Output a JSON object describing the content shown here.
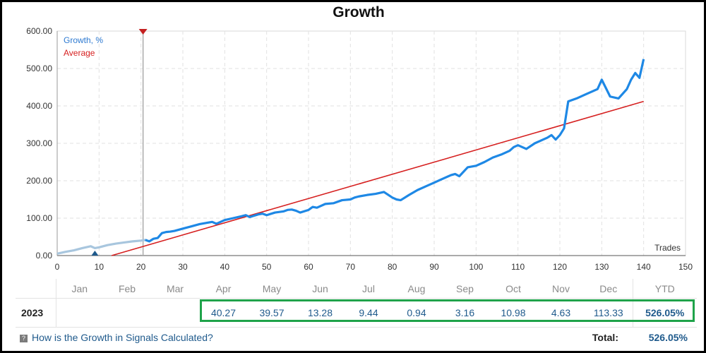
{
  "title": "Growth",
  "legend": {
    "growth": "Growth, %",
    "average": "Average"
  },
  "colors": {
    "growth": "#1e88e5",
    "growth_early": "#a8c6de",
    "average": "#d62020",
    "highlight": "#1fa34a"
  },
  "chart_data": {
    "type": "line",
    "title": "Growth",
    "xlabel": "Trades",
    "ylabel": "",
    "xlim": [
      0,
      150
    ],
    "ylim": [
      0,
      600
    ],
    "x_ticks": [
      0,
      10,
      20,
      30,
      40,
      50,
      60,
      70,
      80,
      90,
      100,
      110,
      120,
      130,
      140,
      150
    ],
    "y_ticks": [
      "0.00",
      "100.00",
      "200.00",
      "300.00",
      "400.00",
      "500.00",
      "600.00"
    ],
    "grid": true,
    "legend_position": "top-left",
    "series": [
      {
        "name": "Growth, %",
        "x": [
          0,
          2,
          4,
          6,
          8,
          9,
          10,
          12,
          14,
          16,
          18,
          20,
          21,
          22,
          23,
          24,
          25,
          26,
          27,
          28,
          30,
          32,
          34,
          36,
          37,
          38,
          40,
          42,
          44,
          45,
          46,
          48,
          49,
          50,
          52,
          54,
          55,
          56,
          57,
          58,
          60,
          61,
          62,
          64,
          66,
          68,
          70,
          71,
          72,
          74,
          76,
          78,
          80,
          81,
          82,
          84,
          86,
          88,
          90,
          92,
          94,
          95,
          96,
          98,
          100,
          102,
          104,
          106,
          108,
          109,
          110,
          112,
          114,
          116,
          117,
          118,
          119,
          120,
          121,
          122,
          124,
          126,
          127,
          128,
          129,
          130,
          132,
          134,
          136,
          137,
          138,
          139,
          140
        ],
        "y": [
          5,
          10,
          14,
          20,
          25,
          20,
          22,
          28,
          32,
          35,
          38,
          40,
          42,
          38,
          45,
          47,
          60,
          63,
          64,
          66,
          72,
          78,
          84,
          88,
          90,
          85,
          95,
          100,
          105,
          108,
          103,
          110,
          112,
          108,
          115,
          118,
          122,
          123,
          120,
          115,
          122,
          130,
          128,
          138,
          140,
          148,
          150,
          155,
          158,
          162,
          165,
          170,
          155,
          150,
          148,
          162,
          175,
          185,
          195,
          205,
          215,
          218,
          212,
          236,
          240,
          250,
          262,
          270,
          280,
          290,
          295,
          285,
          300,
          310,
          315,
          322,
          310,
          322,
          340,
          412,
          420,
          430,
          435,
          440,
          445,
          470,
          425,
          420,
          445,
          470,
          488,
          475,
          525
        ]
      },
      {
        "name": "Average",
        "x": [
          13,
          140
        ],
        "y": [
          0,
          412
        ]
      }
    ],
    "markers": [
      {
        "x": 9,
        "y": 0,
        "shape": "triangle-up",
        "color": "#1f5a8c"
      },
      {
        "x": 20.5,
        "y": 600,
        "shape": "triangle-down",
        "color": "#c42020"
      }
    ]
  },
  "table": {
    "months": [
      "Jan",
      "Feb",
      "Mar",
      "Apr",
      "May",
      "Jun",
      "Jul",
      "Aug",
      "Sep",
      "Oct",
      "Nov",
      "Dec"
    ],
    "ytd_label": "YTD",
    "rows": [
      {
        "year": "2023",
        "values": [
          "",
          "",
          "",
          "40.27",
          "39.57",
          "13.28",
          "9.44",
          "0.94",
          "3.16",
          "10.98",
          "4.63",
          "113.33"
        ],
        "ytd": "526.05%"
      }
    ]
  },
  "footer": {
    "faq_link": "How is the Growth in Signals Calculated?",
    "total_label": "Total:",
    "total_value": "526.05%"
  }
}
